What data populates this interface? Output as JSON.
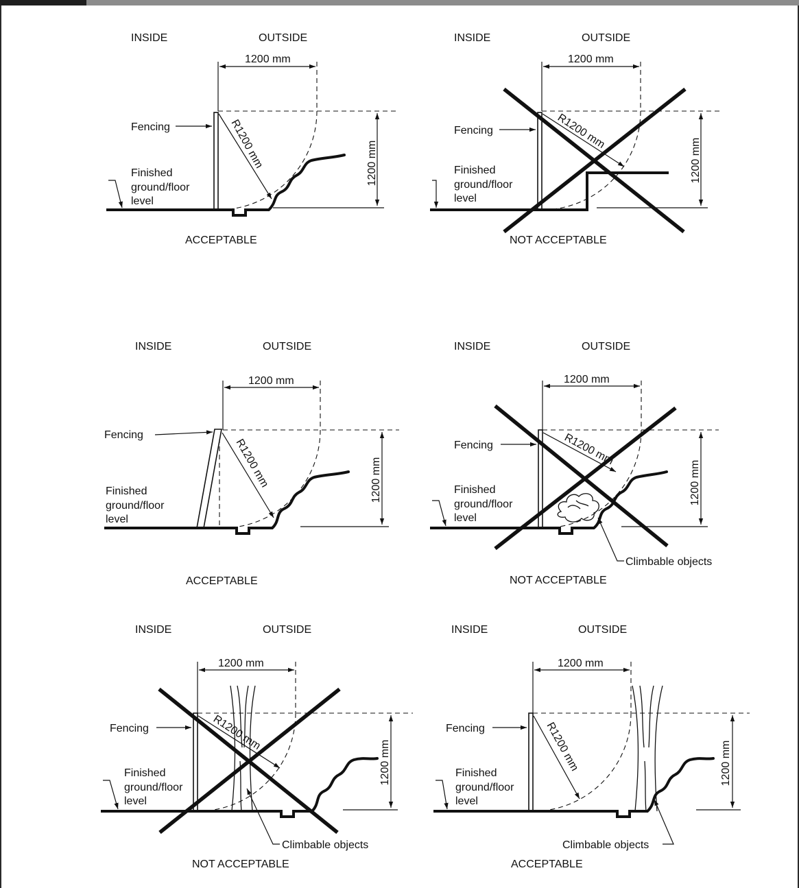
{
  "panels": [
    {
      "inside": "INSIDE",
      "outside": "OUTSIDE",
      "width_dim": "1200 mm",
      "height_dim": "1200 mm",
      "radius": "R1200 mm",
      "fencing": "Fencing",
      "ground": [
        "Finished",
        "ground/floor",
        "level"
      ],
      "verdict": "ACCEPTABLE"
    },
    {
      "inside": "INSIDE",
      "outside": "OUTSIDE",
      "width_dim": "1200 mm",
      "height_dim": "1200 mm",
      "radius": "R1200 mm",
      "fencing": "Fencing",
      "ground": [
        "Finished",
        "ground/floor",
        "level"
      ],
      "verdict": "NOT ACCEPTABLE"
    },
    {
      "inside": "INSIDE",
      "outside": "OUTSIDE",
      "width_dim": "1200 mm",
      "height_dim": "1200 mm",
      "radius": "R1200 mm",
      "fencing": "Fencing",
      "ground": [
        "Finished",
        "ground/floor",
        "level"
      ],
      "verdict": "ACCEPTABLE"
    },
    {
      "inside": "INSIDE",
      "outside": "OUTSIDE",
      "width_dim": "1200 mm",
      "height_dim": "1200 mm",
      "radius": "R1200 mm",
      "fencing": "Fencing",
      "ground": [
        "Finished",
        "ground/floor",
        "level"
      ],
      "climbable": "Climbable objects",
      "verdict": "NOT ACCEPTABLE"
    },
    {
      "inside": "INSIDE",
      "outside": "OUTSIDE",
      "width_dim": "1200 mm",
      "height_dim": "1200 mm",
      "radius": "R1200 mm",
      "fencing": "Fencing",
      "ground": [
        "Finished",
        "ground/floor",
        "level"
      ],
      "climbable": "Climbable objects",
      "verdict": "NOT ACCEPTABLE"
    },
    {
      "inside": "INSIDE",
      "outside": "OUTSIDE",
      "width_dim": "1200 mm",
      "height_dim": "1200 mm",
      "radius": "R1200 mm",
      "fencing": "Fencing",
      "ground": [
        "Finished",
        "ground/floor",
        "level"
      ],
      "climbable": "Climbable objects",
      "verdict": "ACCEPTABLE"
    }
  ]
}
